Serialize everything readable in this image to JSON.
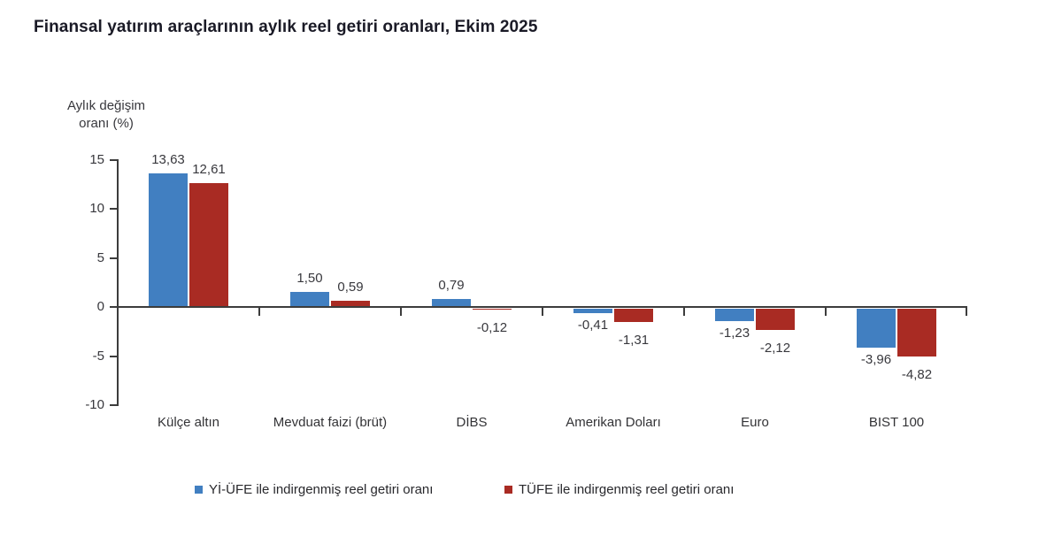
{
  "title": "Finansal yatırım araçlarının aylık reel getiri oranları, Ekim 2025",
  "chart_data": {
    "type": "bar",
    "title": "Finansal yatırım araçlarının aylık reel getiri oranları, Ekim 2025",
    "xlabel": "",
    "ylabel": "Aylık değişim\noranı (%)",
    "ylim": [
      -10,
      15
    ],
    "yticks": [
      15,
      10,
      5,
      0,
      -5,
      -10
    ],
    "grid": false,
    "legend_position": "bottom",
    "decimal_separator": ",",
    "categories": [
      "Külçe altın",
      "Mevduat faizi (brüt)",
      "DİBS",
      "Amerikan Doları",
      "Euro",
      "BIST 100"
    ],
    "series": [
      {
        "name": "Yİ-ÜFE ile indirgenmiş reel getiri oranı",
        "color": "#417fc1",
        "values": [
          13.63,
          1.5,
          0.79,
          -0.41,
          -1.23,
          -3.96
        ]
      },
      {
        "name": "TÜFE ile indirgenmiş reel getiri oranı",
        "color": "#a92b23",
        "values": [
          12.61,
          0.59,
          -0.12,
          -1.31,
          -2.12,
          -4.82
        ]
      }
    ]
  },
  "colors": {
    "axis": "#3c3c3c",
    "label_text": "#38383d",
    "title_text": "#1a1a26",
    "background": "#ffffff"
  }
}
